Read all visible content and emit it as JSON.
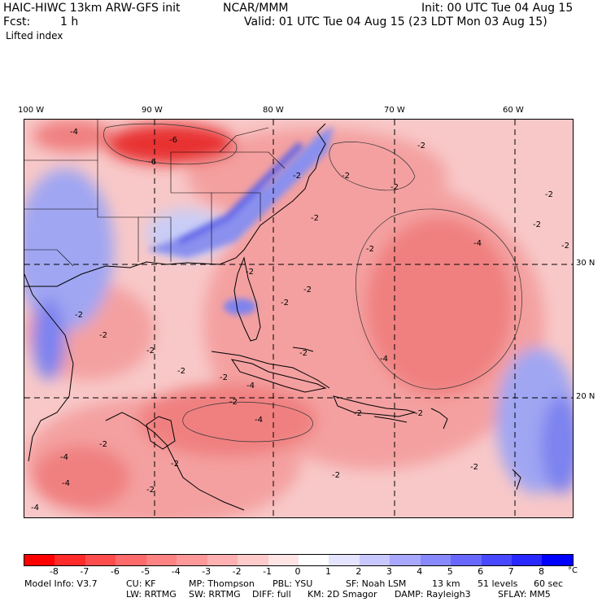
{
  "header": {
    "model_title": "HAIC-HIWC 13km ARW-GFS init",
    "org": "NCAR/MMM",
    "init": "Init: 00 UTC Tue 04 Aug 15",
    "fcst_label": "Fcst:",
    "fcst_value": "1 h",
    "valid": "Valid: 01 UTC Tue 04 Aug 15 (23 LDT Mon 03 Aug 15)",
    "field_name": "Lifted index"
  },
  "map": {
    "lon_labels": [
      "100 W",
      "90 W",
      "80 W",
      "70 W",
      "60 W"
    ],
    "lat_labels": [
      "30 N",
      "20 N"
    ],
    "contour_labels": [
      "-4",
      "-6",
      "-6",
      "-2",
      "-2",
      "-2",
      "-2",
      "-2",
      "-2",
      "-2",
      "-2",
      "-2",
      "-2",
      "-4",
      "-2",
      "-2",
      "-2",
      "-2",
      "-2",
      "-4",
      "-4",
      "-2",
      "-2",
      "-4",
      "-2",
      "-2",
      "-4",
      "-2",
      "-2",
      "-2",
      "-2",
      "-4",
      "-4",
      "-2",
      "-2",
      "-2"
    ],
    "colors": {
      "strong_negative": "#e8202a",
      "negative": "#f07f80",
      "weak_negative": "#f8c8c8",
      "neutral": "#ffffff",
      "weak_positive": "#c8cdf7",
      "positive": "#7d83ef"
    }
  },
  "colorbar": {
    "unit": "°C",
    "ticks": [
      "-8",
      "-7",
      "-6",
      "-5",
      "-4",
      "-3",
      "-2",
      "-1",
      "0",
      "1",
      "2",
      "3",
      "4",
      "5",
      "6",
      "7",
      "8"
    ],
    "colors": [
      "#ff0000",
      "#ff2a2a",
      "#ff4d4d",
      "#ff6a6a",
      "#ff8383",
      "#ff9999",
      "#ffb0b0",
      "#ffcaca",
      "#ffe4e4",
      "#ffffff",
      "#e4e4ff",
      "#c8c8ff",
      "#a8a8ff",
      "#8888ff",
      "#6868ff",
      "#4848ff",
      "#2828ff",
      "#0000ff"
    ]
  },
  "footer": {
    "line1": [
      "Model Info: V3.7",
      "CU: KF",
      "MP: Thompson",
      "PBL: YSU",
      "SF: Noah LSM",
      "13 km",
      "51 levels",
      "60 sec"
    ],
    "line2": [
      "LW: RRTMG",
      "SW: RRTMG",
      "DIFF: full",
      "KM: 2D Smagor",
      "DAMP: Rayleigh3",
      "SFLAY: MM5"
    ]
  }
}
